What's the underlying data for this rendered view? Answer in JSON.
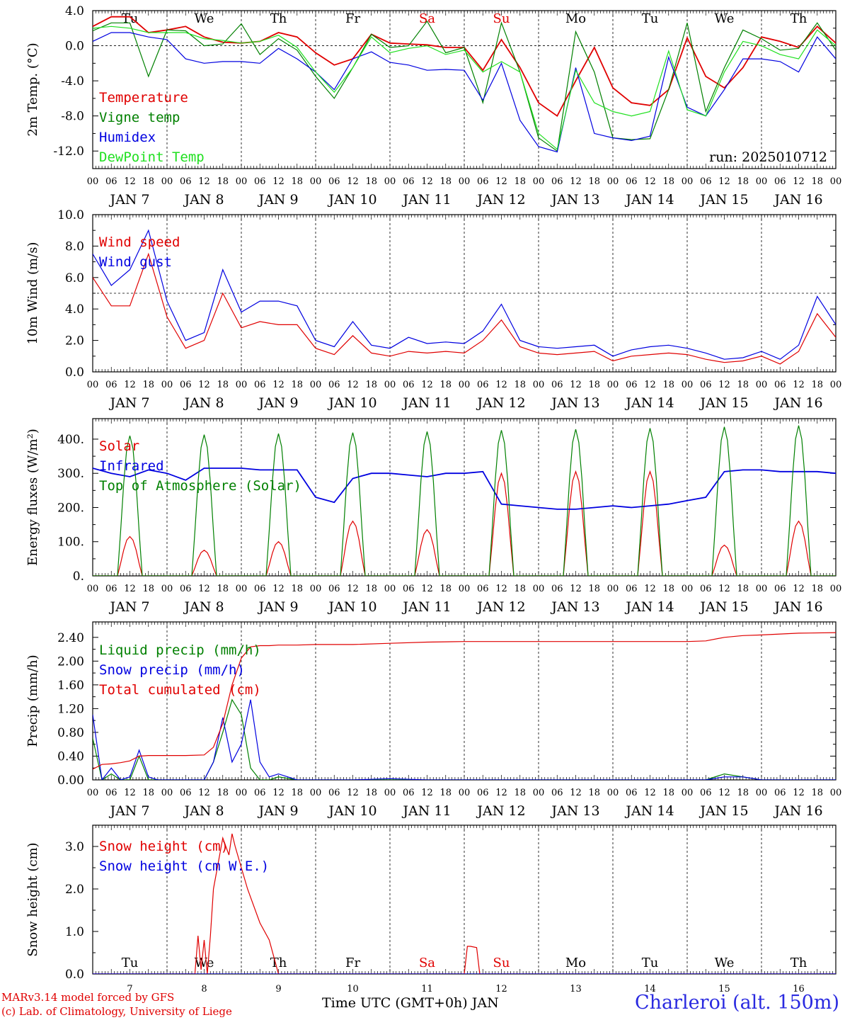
{
  "days": [
    "Tu",
    "We",
    "Th",
    "Fr",
    "Sa",
    "Su",
    "Mo",
    "Tu",
    "We",
    "Th"
  ],
  "day_colors": [
    "#000",
    "#000",
    "#000",
    "#000",
    "#e00000",
    "#e00000",
    "#000",
    "#000",
    "#000",
    "#000"
  ],
  "dates": [
    "JAN   7",
    "JAN   8",
    "JAN   9",
    "JAN  10",
    "JAN  11",
    "JAN  12",
    "JAN  13",
    "JAN  14",
    "JAN  15",
    "JAN  16"
  ],
  "date_nums": [
    "7",
    "8",
    "9",
    "10",
    "11",
    "12",
    "13",
    "14",
    "15",
    "16"
  ],
  "hour_ticks": [
    "00",
    "06",
    "12",
    "18"
  ],
  "run_label": "run: 2025010712",
  "footer": {
    "credit1": "MARv3.14 model forced by GFS",
    "credit2": "(c) Lab. of Climatology, University of Liege",
    "x_title": "Time UTC (GMT+0h) JAN",
    "station": "Charleroi (alt. 150m)"
  },
  "chart_data": [
    {
      "type": "line",
      "ylabel": "2m Temp. (°C)",
      "ylim": [
        -14.0,
        4.0
      ],
      "yticks": [
        "4.0",
        "0.0",
        "-4.0",
        "-8.0",
        "-12.0"
      ],
      "ytick_values": [
        4,
        0,
        -4,
        -8,
        -12
      ],
      "ref_line": 0,
      "x_hours": [
        0,
        6,
        12,
        18,
        24,
        30,
        36,
        42,
        48,
        54,
        60,
        66,
        72,
        78,
        84,
        90,
        96,
        102,
        108,
        114,
        120,
        126,
        132,
        138,
        144,
        150,
        156,
        162,
        168,
        174,
        180,
        186,
        192,
        198,
        204,
        210,
        216,
        222,
        228,
        234,
        240
      ],
      "series": [
        {
          "name": "Temperature",
          "color": "#e00000",
          "values": [
            2.2,
            3.3,
            3.3,
            1.5,
            1.8,
            2.2,
            1.0,
            0.4,
            0.3,
            0.5,
            1.5,
            1.0,
            -0.8,
            -2.2,
            -1.5,
            1.3,
            0.3,
            0.2,
            0.1,
            -0.2,
            -0.2,
            -2.8,
            0.7,
            -2.5,
            -6.5,
            -8.0,
            -4.0,
            -0.2,
            -4.8,
            -6.5,
            -6.8,
            -5.0,
            0.9,
            -3.5,
            -4.8,
            -2.5,
            1.0,
            0.5,
            -0.2,
            2.2,
            0.3
          ]
        },
        {
          "name": "Vigne temp",
          "color": "#008000",
          "values": [
            1.7,
            2.6,
            2.6,
            -3.5,
            1.8,
            1.7,
            0.0,
            0.2,
            2.5,
            -1.0,
            0.8,
            -0.5,
            -3.5,
            -6.0,
            -2.5,
            1.3,
            -0.2,
            0.0,
            2.8,
            -0.8,
            -0.2,
            -6.5,
            2.6,
            -3.0,
            -10.5,
            -12.0,
            1.6,
            -3.0,
            -10.5,
            -10.7,
            -10.6,
            -5.0,
            2.6,
            -7.5,
            -2.5,
            1.8,
            0.8,
            -0.5,
            -0.3,
            2.6,
            -0.5
          ]
        },
        {
          "name": "Humidex",
          "color": "#0000e0",
          "values": [
            0.5,
            1.5,
            1.5,
            1.0,
            0.7,
            -1.5,
            -2.0,
            -1.8,
            -1.8,
            -2.0,
            -0.3,
            -1.5,
            -3.0,
            -5.0,
            -1.5,
            -0.7,
            -1.9,
            -2.2,
            -2.8,
            -2.7,
            -2.8,
            -6.2,
            -2.0,
            -8.5,
            -11.5,
            -12.1,
            -2.5,
            -10.0,
            -10.5,
            -10.8,
            -10.3,
            -1.3,
            -7.0,
            -8.0,
            -5.0,
            -1.5,
            -1.5,
            -1.8,
            -3.0,
            1.0,
            -1.5
          ]
        },
        {
          "name": "DewPoint Temp",
          "color": "#20e020",
          "values": [
            2.0,
            2.2,
            2.0,
            1.5,
            1.5,
            1.5,
            0.8,
            0.6,
            0.3,
            0.5,
            1.2,
            -0.2,
            -3.0,
            -5.3,
            -2.5,
            1.0,
            -0.8,
            -0.3,
            0.0,
            -1.0,
            -0.5,
            -3.0,
            -1.8,
            -3.0,
            -10.0,
            -11.8,
            -2.8,
            -6.5,
            -7.5,
            -8.0,
            -7.5,
            -0.6,
            -7.3,
            -8.0,
            -3.0,
            0.5,
            0.0,
            -1.0,
            -1.5,
            1.8,
            0.0
          ]
        }
      ]
    },
    {
      "type": "line",
      "ylabel": "10m Wind (m/s)",
      "ylim": [
        0.0,
        10.0
      ],
      "yticks": [
        "10.0",
        "8.0",
        "6.0",
        "4.0",
        "2.0",
        "0.0"
      ],
      "ytick_values": [
        10,
        8,
        6,
        4,
        2,
        0
      ],
      "ref_line": 5,
      "x_hours": [
        0,
        6,
        12,
        18,
        24,
        30,
        36,
        42,
        48,
        54,
        60,
        66,
        72,
        78,
        84,
        90,
        96,
        102,
        108,
        114,
        120,
        126,
        132,
        138,
        144,
        150,
        156,
        162,
        168,
        174,
        180,
        186,
        192,
        198,
        204,
        210,
        216,
        222,
        228,
        234,
        240
      ],
      "series": [
        {
          "name": "Wind speed",
          "color": "#e00000",
          "values": [
            6.0,
            4.2,
            4.2,
            7.5,
            3.5,
            1.5,
            2.0,
            5.0,
            2.8,
            3.2,
            3.0,
            3.0,
            1.5,
            1.1,
            2.3,
            1.2,
            1.0,
            1.3,
            1.2,
            1.3,
            1.2,
            2.0,
            3.3,
            1.6,
            1.2,
            1.1,
            1.2,
            1.3,
            0.7,
            1.0,
            1.1,
            1.2,
            1.1,
            0.8,
            0.6,
            0.7,
            1.0,
            0.5,
            1.3,
            3.7,
            2.2
          ]
        },
        {
          "name": "Wind gust",
          "color": "#0000e0",
          "values": [
            7.5,
            5.5,
            6.5,
            9.0,
            4.5,
            2.0,
            2.5,
            6.5,
            3.8,
            4.5,
            4.5,
            4.2,
            2.0,
            1.6,
            3.2,
            1.7,
            1.5,
            2.2,
            1.8,
            1.9,
            1.8,
            2.6,
            4.3,
            2.0,
            1.6,
            1.5,
            1.6,
            1.7,
            1.0,
            1.4,
            1.6,
            1.7,
            1.5,
            1.2,
            0.8,
            0.9,
            1.3,
            0.8,
            1.7,
            4.8,
            3.0
          ]
        }
      ]
    },
    {
      "type": "line",
      "ylabel": "Energy fluxes (W/m²)",
      "ylim": [
        0,
        460
      ],
      "yticks": [
        "400.",
        "300.",
        "200.",
        "100.",
        "0."
      ],
      "ytick_values": [
        400,
        300,
        200,
        100,
        0
      ],
      "series": [
        {
          "name": "Solar",
          "color": "#e00000",
          "peaks": [
            [
              7,
              115
            ],
            [
              8,
              75
            ],
            [
              9,
              100
            ],
            [
              10,
              160
            ],
            [
              11,
              135
            ],
            [
              12,
              300
            ],
            [
              13,
              305
            ],
            [
              14,
              305
            ],
            [
              15,
              90
            ],
            [
              16,
              160
            ]
          ]
        },
        {
          "name": "Infrared",
          "color": "#0000e0",
          "x_hours": [
            0,
            6,
            12,
            18,
            24,
            30,
            36,
            42,
            48,
            54,
            60,
            66,
            72,
            78,
            84,
            90,
            96,
            102,
            108,
            114,
            120,
            126,
            132,
            138,
            144,
            150,
            156,
            162,
            168,
            174,
            180,
            186,
            192,
            198,
            204,
            210,
            216,
            222,
            228,
            234,
            240
          ],
          "values": [
            315,
            300,
            290,
            310,
            300,
            280,
            315,
            315,
            315,
            310,
            310,
            310,
            230,
            215,
            285,
            300,
            300,
            295,
            290,
            300,
            300,
            305,
            210,
            205,
            200,
            195,
            195,
            200,
            205,
            200,
            205,
            210,
            220,
            230,
            305,
            310,
            310,
            305,
            305,
            305,
            300
          ]
        },
        {
          "name": "Top of Atmosphere (Solar)",
          "color": "#008000",
          "peaks": [
            [
              7,
              410
            ],
            [
              8,
              413
            ],
            [
              9,
              416
            ],
            [
              10,
              419
            ],
            [
              11,
              422
            ],
            [
              12,
              426
            ],
            [
              13,
              429
            ],
            [
              14,
              432
            ],
            [
              15,
              436
            ],
            [
              16,
              440
            ]
          ]
        }
      ]
    },
    {
      "type": "line",
      "ylabel": "Precip (mm/h)",
      "ylim": [
        0.0,
        2.66
      ],
      "yticks": [
        "2.40",
        "2.00",
        "1.60",
        "1.20",
        "0.80",
        "0.40",
        "0.00"
      ],
      "ytick_values": [
        2.4,
        2.0,
        1.6,
        1.2,
        0.8,
        0.4,
        0.0
      ],
      "x_hours": [
        0,
        3,
        6,
        9,
        12,
        15,
        18,
        21,
        24,
        30,
        36,
        39,
        42,
        45,
        48,
        51,
        54,
        57,
        60,
        66,
        72,
        84,
        96,
        108,
        120,
        132,
        144,
        156,
        168,
        180,
        192,
        198,
        204,
        210,
        216,
        228,
        240
      ],
      "series": [
        {
          "name": "Liquid precip (mm/h)",
          "color": "#008000",
          "values": [
            0.7,
            0.0,
            0.1,
            0.0,
            0.0,
            0.4,
            0.0,
            0.0,
            0.0,
            0.0,
            0.0,
            0.3,
            0.8,
            1.35,
            1.1,
            0.2,
            0.0,
            0.0,
            0.05,
            0.0,
            0.0,
            0.0,
            0.0,
            0.0,
            0.0,
            0.0,
            0.0,
            0.0,
            0.0,
            0.0,
            0.0,
            0.0,
            0.1,
            0.05,
            0.0,
            0.0,
            0.0
          ]
        },
        {
          "name": "Snow precip (mm/h)",
          "color": "#0000e0",
          "values": [
            1.1,
            0.0,
            0.2,
            0.0,
            0.05,
            0.5,
            0.05,
            0.0,
            0.0,
            0.0,
            0.0,
            0.3,
            1.05,
            0.3,
            0.6,
            1.35,
            0.3,
            0.05,
            0.1,
            0.0,
            0.0,
            0.0,
            0.02,
            0.0,
            0.0,
            0.0,
            0.0,
            0.0,
            0.0,
            0.0,
            0.0,
            0.0,
            0.05,
            0.05,
            0.0,
            0.0,
            0.0
          ]
        },
        {
          "name": "Total cumulated (cm)",
          "color": "#e00000",
          "values": [
            0.18,
            0.26,
            0.27,
            0.29,
            0.32,
            0.4,
            0.41,
            0.41,
            0.41,
            0.41,
            0.42,
            0.55,
            0.95,
            1.6,
            2.05,
            2.24,
            2.26,
            2.26,
            2.27,
            2.27,
            2.28,
            2.28,
            2.3,
            2.32,
            2.33,
            2.33,
            2.33,
            2.33,
            2.33,
            2.33,
            2.33,
            2.34,
            2.4,
            2.43,
            2.44,
            2.47,
            2.48
          ]
        }
      ]
    },
    {
      "type": "line",
      "ylabel": "Snow height (cm)",
      "ylim": [
        0.0,
        3.5
      ],
      "yticks": [
        "3.0",
        "2.0",
        "1.0",
        "0.0"
      ],
      "ytick_values": [
        3,
        2,
        1,
        0
      ],
      "x_hours": [
        0,
        30,
        33,
        34,
        35,
        36,
        37,
        38,
        39,
        42,
        44,
        45,
        46,
        48,
        50,
        54,
        57,
        60,
        62,
        120,
        121,
        122,
        124,
        125,
        126,
        240
      ],
      "series": [
        {
          "name": "Snow height (cm)",
          "color": "#e00000",
          "values": [
            0,
            0,
            0,
            0.9,
            0.1,
            0.8,
            0.0,
            0.9,
            2.0,
            3.2,
            2.8,
            3.3,
            3.0,
            2.5,
            2.0,
            1.2,
            0.8,
            0,
            0,
            0,
            0.65,
            0.65,
            0.62,
            0,
            0,
            0
          ]
        },
        {
          "name": "Snow height (cm W.E.)",
          "color": "#0000e0",
          "values": [
            0,
            0,
            0,
            0,
            0,
            0,
            0,
            0,
            0,
            0,
            0,
            0,
            0,
            0,
            0,
            0,
            0,
            0,
            0,
            0,
            0,
            0,
            0,
            0,
            0,
            0
          ]
        }
      ]
    }
  ]
}
